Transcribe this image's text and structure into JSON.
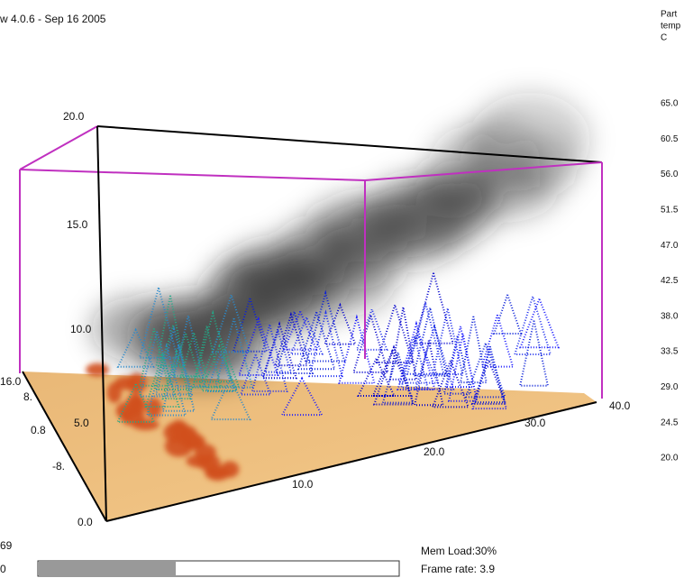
{
  "header": {
    "title": "w 4.0.6 - Sep 16 2005"
  },
  "colorbar": {
    "title": [
      "Part",
      "temp",
      "C"
    ],
    "labels": [
      "65.0",
      "60.5",
      "56.0",
      "51.5",
      "47.0",
      "42.5",
      "38.0",
      "33.5",
      "29.0",
      "24.5",
      "20.0"
    ]
  },
  "axes": {
    "z_labels": [
      "20.0",
      "15.0",
      "10.0",
      "5.0",
      "0.0"
    ],
    "x_labels": [
      "10.0",
      "20.0",
      "30.0",
      "40.0"
    ],
    "y_labels": [
      "16.0",
      "8.",
      "0.8",
      "-8."
    ]
  },
  "status": {
    "left_top": "69",
    "left_bottom": "0",
    "mem_load": "Mem Load:30%",
    "frame_rate": "Frame rate: 3.9"
  }
}
